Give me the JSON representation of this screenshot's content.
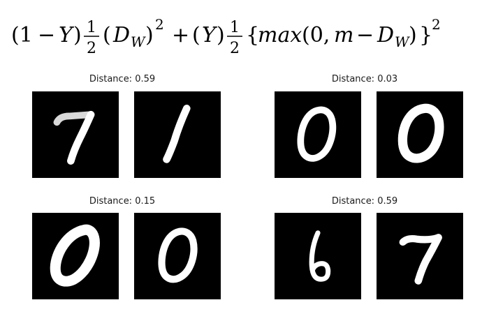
{
  "formula": {
    "p1": "(1",
    "minus1": "−",
    "Y1": "Y",
    "close1": ")",
    "frac1_num": "1",
    "frac1_den": "2",
    "DW1_open": "(",
    "DW1_D": "D",
    "DW1_sub": "W",
    "DW1_close": ")",
    "sq1": "2",
    "plus": "+",
    "Y2_open": "(",
    "Y2": "Y",
    "Y2_close": ")",
    "frac2_num": "1",
    "frac2_den": "2",
    "brace_open": "{",
    "max": "max",
    "args_open": "(0,",
    "m": "m",
    "minus2": "−",
    "DW2_D": "D",
    "DW2_sub": "W",
    "args_close": ")",
    "brace_close": "}",
    "sq2": "2"
  },
  "pairs": [
    {
      "label": "Distance: 0.59",
      "left_digit": "7",
      "right_digit": "1"
    },
    {
      "label": "Distance: 0.03",
      "left_digit": "0",
      "right_digit": "0"
    },
    {
      "label": "Distance: 0.15",
      "left_digit": "0",
      "right_digit": "0"
    },
    {
      "label": "Distance: 0.59",
      "left_digit": "6",
      "right_digit": "7"
    }
  ]
}
